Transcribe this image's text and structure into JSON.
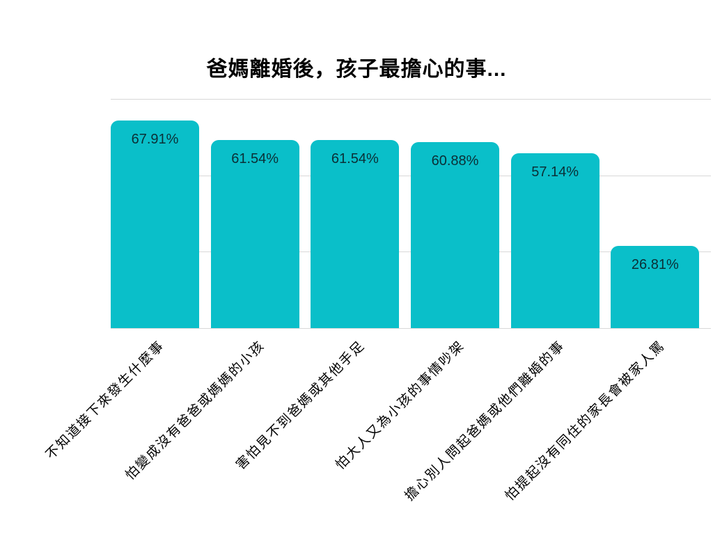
{
  "title": "爸媽離婚後，孩子最擔心的事...",
  "colors": {
    "bar": "#0abfc9",
    "gridline": "#d8d8d8",
    "value_label_text": "#0b2f36",
    "axis_label_text": "#000000",
    "background": "#ffffff"
  },
  "chart_data": {
    "type": "bar",
    "title": "爸媽離婚後，孩子最擔心的事...",
    "categories": [
      "不知道接下來發生什麼事",
      "怕變成沒有爸爸或媽媽的小孩",
      "害怕見不到爸媽或其他手足",
      "怕大人又為小孩的事情吵架",
      "擔心別人問起爸媽或他們離婚的事",
      "怕提起沒有同住的家長會被家人罵"
    ],
    "values": [
      67.91,
      61.54,
      61.54,
      60.88,
      57.14,
      26.81
    ],
    "value_labels": [
      "67.91%",
      "61.54%",
      "61.54%",
      "60.88%",
      "57.14%",
      "26.81%"
    ],
    "xlabel": "",
    "ylabel": "",
    "ylim": [
      0,
      75
    ],
    "gridline_values": [
      0,
      25,
      50,
      75
    ],
    "grid": true,
    "y_tick_labels_visible": false,
    "legend": "none",
    "bar_label_position": "inside-top",
    "x_tick_rotation_deg": -45
  }
}
